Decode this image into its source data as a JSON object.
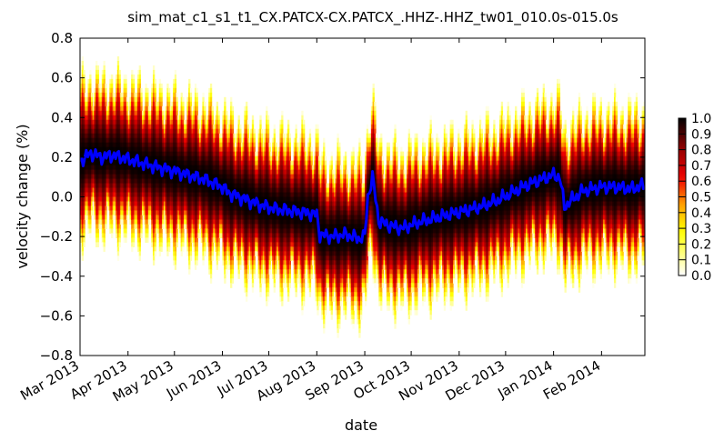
{
  "chart_data": {
    "type": "heatmap",
    "title": "sim_mat_c1_s1_t1_CX.PATCX-CX.PATCX_.HHZ-.HHZ_tw01_010.0s-015.0s",
    "xlabel": "date",
    "ylabel": "velocity change (%)",
    "xlim": [
      "2013-03-01",
      "2014-03-01"
    ],
    "ylim": [
      -0.8,
      0.8
    ],
    "x_tick_labels": [
      "Mar 2013",
      "Apr 2013",
      "May 2013",
      "Jun 2013",
      "Jul 2013",
      "Aug 2013",
      "Sep 2013",
      "Oct 2013",
      "Nov 2013",
      "Dec 2013",
      "Jan 2014",
      "Feb 2014"
    ],
    "x_tick_dates": [
      "2013-03-01",
      "2013-04-01",
      "2013-05-01",
      "2013-06-01",
      "2013-07-01",
      "2013-08-01",
      "2013-09-01",
      "2013-10-01",
      "2013-11-01",
      "2013-12-01",
      "2014-01-01",
      "2014-02-01"
    ],
    "y_ticks": [
      -0.8,
      -0.6,
      -0.4,
      -0.2,
      0.0,
      0.2,
      0.4,
      0.6,
      0.8
    ],
    "y_tick_labels": [
      "−0.8",
      "−0.6",
      "−0.4",
      "−0.2",
      "0.0",
      "0.2",
      "0.4",
      "0.6",
      "0.8"
    ],
    "colorbar": {
      "colormap": "hot_r",
      "range": [
        0.0,
        1.0
      ],
      "tick_labels": [
        "0.0",
        "0.1",
        "0.2",
        "0.3",
        "0.4",
        "0.5",
        "0.6",
        "0.7",
        "0.8",
        "0.9",
        "1.0"
      ]
    },
    "grid": false,
    "series": [
      {
        "type": "line",
        "color": "#0000ff",
        "x": [
          "2013-03-01",
          "2013-03-08",
          "2013-03-15",
          "2013-03-22",
          "2013-04-01",
          "2013-04-10",
          "2013-04-20",
          "2013-05-01",
          "2013-05-10",
          "2013-05-20",
          "2013-06-01",
          "2013-06-05",
          "2013-06-15",
          "2013-06-25",
          "2013-07-05",
          "2013-07-15",
          "2013-07-25",
          "2013-08-01",
          "2013-08-03",
          "2013-08-10",
          "2013-08-20",
          "2013-08-28",
          "2013-09-01",
          "2013-09-03",
          "2013-09-06",
          "2013-09-10",
          "2013-09-15",
          "2013-09-25",
          "2013-10-05",
          "2013-10-15",
          "2013-10-25",
          "2013-11-05",
          "2013-11-15",
          "2013-11-25",
          "2013-12-05",
          "2013-12-15",
          "2013-12-25",
          "2014-01-01",
          "2014-01-05",
          "2014-01-08",
          "2014-01-12",
          "2014-01-20",
          "2014-02-01",
          "2014-02-10",
          "2014-02-20",
          "2014-03-01"
        ],
        "y": [
          0.18,
          0.22,
          0.2,
          0.21,
          0.19,
          0.17,
          0.15,
          0.13,
          0.11,
          0.09,
          0.05,
          0.02,
          -0.01,
          -0.04,
          -0.06,
          -0.07,
          -0.08,
          -0.09,
          -0.19,
          -0.2,
          -0.19,
          -0.21,
          -0.2,
          0.0,
          0.1,
          -0.12,
          -0.14,
          -0.16,
          -0.13,
          -0.11,
          -0.09,
          -0.07,
          -0.05,
          -0.02,
          0.02,
          0.06,
          0.09,
          0.11,
          0.1,
          -0.05,
          -0.02,
          0.03,
          0.05,
          0.05,
          0.04,
          0.06
        ]
      }
    ]
  }
}
